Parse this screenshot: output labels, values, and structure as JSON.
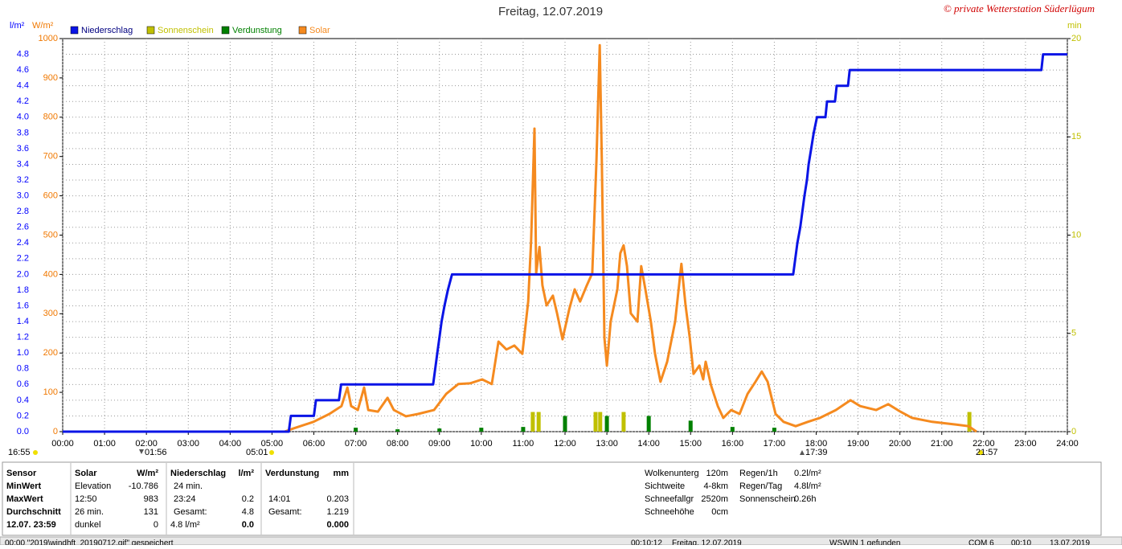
{
  "chart_data": {
    "type": "line",
    "title": "Freitag, 12.07.2019",
    "credit": "© private Wetterstation Süderlügum",
    "y_label": "l/m²",
    "y2_label": "W/m²",
    "y3_label": "min",
    "xlim": [
      0,
      24
    ],
    "xticks": [
      {
        "value": 0,
        "label": "00:00"
      },
      {
        "value": 1,
        "label": "01:00"
      },
      {
        "value": 2,
        "label": "02:00"
      },
      {
        "value": 3,
        "label": "03:00"
      },
      {
        "value": 4,
        "label": "04:00"
      },
      {
        "value": 5,
        "label": "05:00"
      },
      {
        "value": 6,
        "label": "06:00"
      },
      {
        "value": 7,
        "label": "07:00"
      },
      {
        "value": 8,
        "label": "08:00"
      },
      {
        "value": 9,
        "label": "09:00"
      },
      {
        "value": 10,
        "label": "10:00"
      },
      {
        "value": 11,
        "label": "11:00"
      },
      {
        "value": 12,
        "label": "12:00"
      },
      {
        "value": 13,
        "label": "13:00"
      },
      {
        "value": 14,
        "label": "14:00"
      },
      {
        "value": 15,
        "label": "15:00"
      },
      {
        "value": 16,
        "label": "16:00"
      },
      {
        "value": 17,
        "label": "17:00"
      },
      {
        "value": 18,
        "label": "18:00"
      },
      {
        "value": 19,
        "label": "19:00"
      },
      {
        "value": 20,
        "label": "20:00"
      },
      {
        "value": 21,
        "label": "21:00"
      },
      {
        "value": 22,
        "label": "22:00"
      },
      {
        "value": 23,
        "label": "23:00"
      },
      {
        "value": 24,
        "label": "24:00"
      }
    ],
    "ylim": [
      0,
      5
    ],
    "yticks": [
      {
        "value": 0,
        "label": "0.0"
      },
      0.2,
      0.4,
      0.6,
      0.8,
      {
        "value": 1,
        "label": "1.0"
      },
      1.2,
      1.4,
      1.6,
      1.8,
      {
        "value": 2,
        "label": "2.0"
      },
      2.2,
      2.4,
      2.6,
      2.8,
      {
        "value": 3,
        "label": "3.0"
      },
      3.2,
      3.4,
      3.6,
      3.8,
      {
        "value": 4,
        "label": "4.0"
      },
      4.2,
      4.4,
      4.6,
      4.8
    ],
    "y2lim": [
      0,
      1000
    ],
    "y2ticks": [
      0,
      100,
      200,
      300,
      400,
      500,
      600,
      700,
      800,
      900,
      1000
    ],
    "y3lim": [
      0,
      20
    ],
    "y3ticks": [
      0,
      5,
      10,
      15,
      20
    ],
    "y_color": "#0000ff",
    "y2_color": "#f07800",
    "y3_color": "#c0c000",
    "grid": true,
    "annotations": [
      "16:55",
      "01:56",
      "05:01",
      "17:39",
      "21:57"
    ],
    "series": [
      {
        "name": "Niederschlag",
        "color": "#0a14e6",
        "style": "line",
        "x": [
          0,
          5.4,
          5.45,
          6.0,
          6.05,
          6.6,
          6.65,
          8.85,
          8.9,
          8.95,
          9.0,
          9.05,
          9.12,
          9.2,
          9.3,
          17.45,
          17.5,
          17.55,
          17.62,
          17.67,
          17.72,
          17.78,
          17.82,
          17.88,
          17.94,
          18.02,
          18.22,
          18.26,
          18.45,
          18.49,
          18.76,
          18.8,
          23.38,
          23.42,
          24
        ],
        "values": [
          0,
          0,
          0.2,
          0.2,
          0.4,
          0.4,
          0.6,
          0.6,
          0.8,
          1.0,
          1.2,
          1.4,
          1.6,
          1.8,
          2.0,
          2.0,
          2.2,
          2.4,
          2.6,
          2.8,
          3.0,
          3.2,
          3.4,
          3.6,
          3.8,
          4.0,
          4.0,
          4.2,
          4.2,
          4.4,
          4.4,
          4.6,
          4.6,
          4.8,
          4.8
        ]
      },
      {
        "name": "Sonnenschein",
        "color": "#c0c000",
        "style": "bar",
        "axis": "y3",
        "x": [
          11.23,
          11.37,
          12.73,
          12.84,
          13.4,
          21.66
        ],
        "values": [
          1,
          1,
          1,
          1,
          1,
          1
        ]
      },
      {
        "name": "Verdunstung",
        "color": "#008000",
        "style": "bar",
        "x": [
          7,
          8,
          9,
          10,
          11,
          12,
          13,
          14,
          15,
          16,
          17
        ],
        "values": [
          0.05,
          0.03,
          0.04,
          0.05,
          0.06,
          0.2,
          0.2,
          0.2,
          0.14,
          0.06,
          0.05
        ]
      },
      {
        "name": "Solar",
        "color": "#f58a1f",
        "style": "line",
        "axis": "y2",
        "x": [
          5.3,
          5.51,
          5.99,
          6.37,
          6.66,
          6.8,
          6.89,
          7.05,
          7.2,
          7.3,
          7.53,
          7.76,
          7.91,
          8.2,
          8.49,
          8.87,
          9.16,
          9.45,
          9.73,
          10.02,
          10.25,
          10.41,
          10.6,
          10.79,
          10.98,
          11.12,
          11.19,
          11.27,
          11.31,
          11.39,
          11.46,
          11.56,
          11.71,
          11.81,
          11.94,
          12.1,
          12.23,
          12.36,
          12.52,
          12.65,
          12.75,
          12.83,
          12.88,
          12.94,
          13.0,
          13.09,
          13.25,
          13.32,
          13.4,
          13.48,
          13.57,
          13.73,
          13.82,
          13.92,
          14.05,
          14.15,
          14.28,
          14.44,
          14.63,
          14.78,
          14.88,
          14.98,
          15.07,
          15.21,
          15.3,
          15.36,
          15.49,
          15.65,
          15.78,
          15.97,
          16.17,
          16.36,
          16.55,
          16.7,
          16.84,
          17.03,
          17.22,
          17.51,
          17.8,
          18.09,
          18.47,
          18.82,
          19.05,
          19.43,
          19.72,
          20.01,
          20.29,
          20.77,
          21.35,
          21.64,
          21.83
        ],
        "values": [
          0,
          8,
          25,
          45,
          65,
          112,
          65,
          55,
          112,
          55,
          51,
          86,
          55,
          39,
          45,
          55,
          96,
          121,
          123,
          133,
          121,
          229,
          209,
          219,
          198,
          331,
          485,
          771,
          403,
          470,
          372,
          321,
          346,
          301,
          235,
          311,
          362,
          331,
          372,
          403,
          689,
          983,
          689,
          239,
          168,
          280,
          362,
          454,
          474,
          421,
          301,
          280,
          421,
          362,
          280,
          198,
          127,
          178,
          280,
          427,
          321,
          239,
          147,
          168,
          133,
          178,
          117,
          65,
          35,
          55,
          45,
          96,
          127,
          153,
          127,
          45,
          25,
          14,
          25,
          35,
          55,
          80,
          65,
          55,
          70,
          51,
          35,
          25,
          18,
          14,
          0
        ]
      }
    ]
  },
  "stats": {
    "row_labels": [
      "Sensor",
      "MinWert",
      "MaxWert",
      "Durchschnitt",
      "12.07. 23:59"
    ],
    "solar": {
      "title": "Solar",
      "unit": "W/m²",
      "min_label": "Elevation",
      "min": "-10.786",
      "max_label": "12:50",
      "max": "983",
      "avg_label": "26 min.",
      "avg": "131",
      "now_label": "dunkel",
      "now": "0"
    },
    "rain": {
      "title": "Niederschlag",
      "unit": "l/m²",
      "min_label": "24 min.",
      "max_label": "23:24",
      "max": "0.2",
      "avg_label": "Gesamt:",
      "avg": "4.8",
      "now_label": "4.8 l/m²",
      "now": "0.0"
    },
    "evap": {
      "title": "Verdunstung",
      "unit": "mm",
      "max_label": "14:01",
      "max": "0.203",
      "avg_label": "Gesamt:",
      "avg": "1.219",
      "now": "0.000"
    },
    "weather": [
      [
        "Wolkenunterg",
        "120m"
      ],
      [
        "Sichtweite",
        "4-8km"
      ],
      [
        "Schneefallgr",
        "2520m"
      ],
      [
        "Schneehöhe",
        "0cm"
      ]
    ],
    "rain_sun": [
      [
        "Regen/1h",
        "0.2l/m²"
      ],
      [
        "Regen/Tag",
        "4.8l/m²"
      ],
      [
        "Sonnenschein",
        "0.26h"
      ]
    ]
  },
  "status_bar": [
    "00:00  \"2019\\windhft_20190712.gif\" gespeichert",
    "00:10:12",
    "Freitag, 12.07.2019",
    "WSWIN 1 gefunden",
    "COM 6",
    "00:10",
    "13.07.2019"
  ]
}
